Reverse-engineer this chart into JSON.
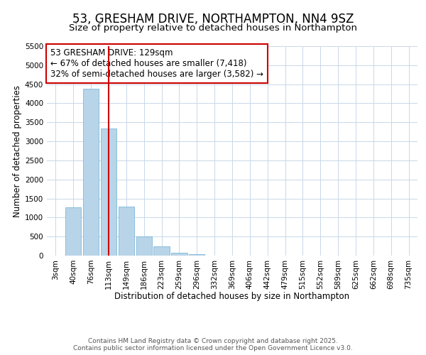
{
  "title": "53, GRESHAM DRIVE, NORTHAMPTON, NN4 9SZ",
  "subtitle": "Size of property relative to detached houses in Northampton",
  "xlabel": "Distribution of detached houses by size in Northampton",
  "ylabel": "Number of detached properties",
  "categories": [
    "3sqm",
    "40sqm",
    "76sqm",
    "113sqm",
    "149sqm",
    "186sqm",
    "223sqm",
    "259sqm",
    "296sqm",
    "332sqm",
    "369sqm",
    "406sqm",
    "442sqm",
    "479sqm",
    "515sqm",
    "552sqm",
    "589sqm",
    "625sqm",
    "662sqm",
    "698sqm",
    "735sqm"
  ],
  "values": [
    0,
    1270,
    4380,
    3340,
    1290,
    500,
    240,
    80,
    30,
    5,
    2,
    0,
    0,
    0,
    0,
    0,
    0,
    0,
    0,
    0,
    0
  ],
  "bar_color": "#b8d4e8",
  "bar_edge_color": "#6aafd4",
  "vline_x_index": 3,
  "vline_color": "#cc0000",
  "annotation_text": "53 GRESHAM DRIVE: 129sqm\n← 67% of detached houses are smaller (7,418)\n32% of semi-detached houses are larger (3,582) →",
  "annotation_box_edge_color": "#cc0000",
  "ylim": [
    0,
    5500
  ],
  "yticks": [
    0,
    500,
    1000,
    1500,
    2000,
    2500,
    3000,
    3500,
    4000,
    4500,
    5000,
    5500
  ],
  "background_color": "#ffffff",
  "grid_color": "#c8d8e8",
  "footer_line1": "Contains HM Land Registry data © Crown copyright and database right 2025.",
  "footer_line2": "Contains public sector information licensed under the Open Government Licence v3.0.",
  "title_fontsize": 12,
  "subtitle_fontsize": 9.5,
  "axis_label_fontsize": 8.5,
  "tick_fontsize": 7.5,
  "annotation_fontsize": 8.5,
  "footer_fontsize": 6.5
}
